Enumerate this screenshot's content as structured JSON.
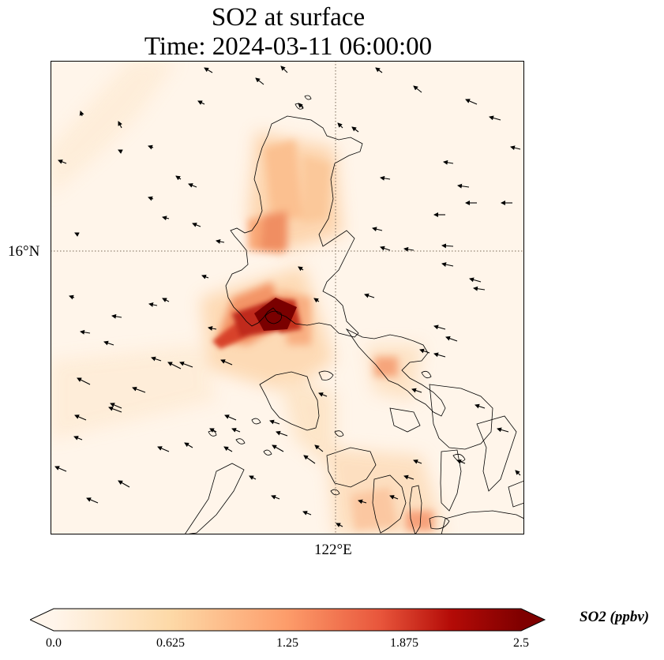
{
  "title": {
    "line1": "SO2 at surface",
    "line2": "Time: 2024-03-11 06:00:00"
  },
  "map": {
    "lat_gridline": "16°N",
    "lon_gridline": "122°E",
    "coastline_color": "#000000",
    "gridline_color": "#7a6a5a",
    "wind_arrow_color": "#000000"
  },
  "colorbar": {
    "title": "SO2 (ppbv)",
    "ticks": [
      "0.0",
      "0.625",
      "1.25",
      "1.875",
      "2.5"
    ],
    "range": [
      0.0,
      2.5
    ],
    "colormap": [
      "#fff5eb",
      "#fdd9a7",
      "#fd9c6a",
      "#e8553b",
      "#b40b07",
      "#7f0000"
    ],
    "extend": "both"
  }
}
